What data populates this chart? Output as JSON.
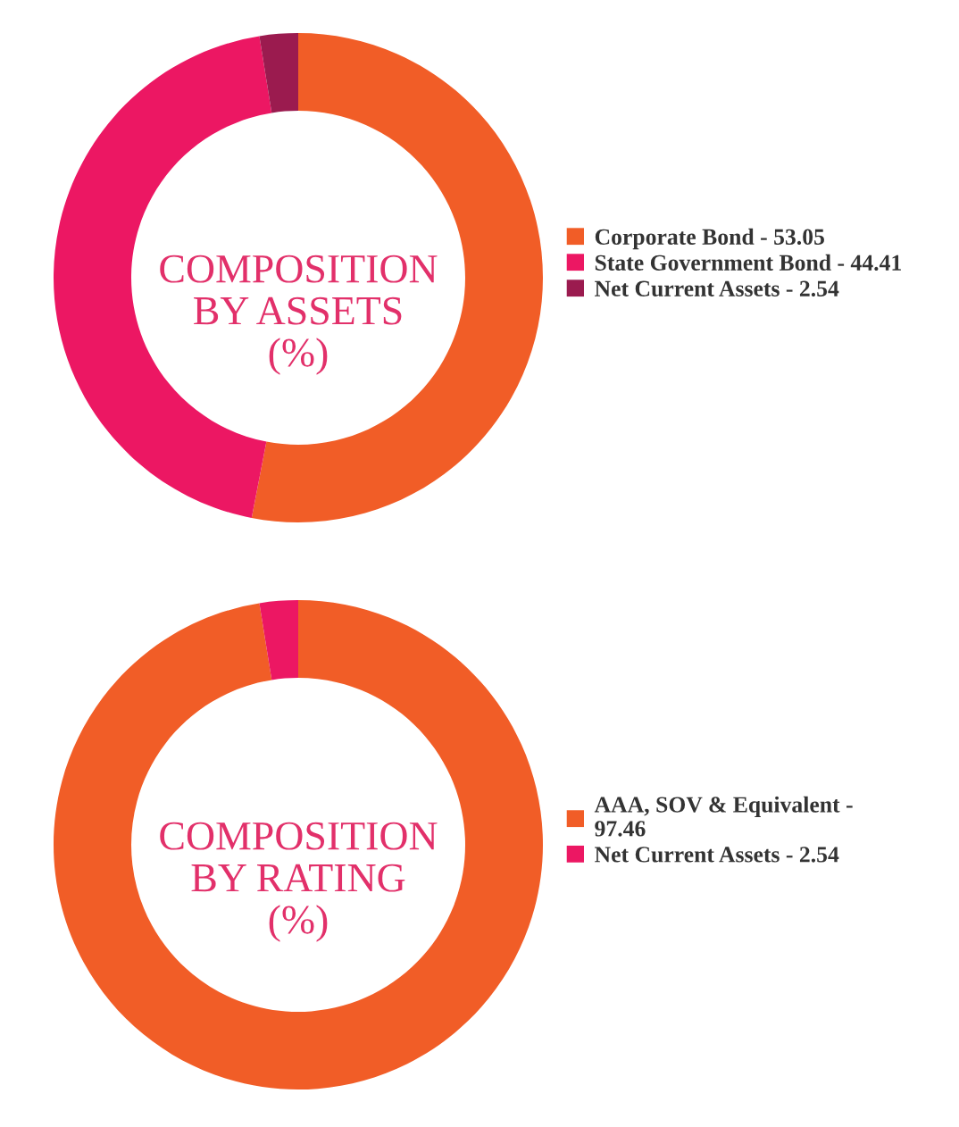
{
  "chart_data": [
    {
      "type": "donut",
      "title": "COMPOSITION\nBY ASSETS\n(%)",
      "categories": [
        "Corporate Bond - 53.05",
        "State Government Bond - 44.41",
        "Net Current Assets - 2.54"
      ],
      "values": [
        53.05,
        44.41,
        2.54
      ],
      "colors": [
        "#f15d27",
        "#ec1763",
        "#9b1b4f"
      ],
      "legend": "right"
    },
    {
      "type": "donut",
      "title": "COMPOSITION\nBY RATING\n(%)",
      "categories": [
        "AAA, SOV & Equivalent -\n97.46",
        "Net Current Assets - 2.54"
      ],
      "values": [
        97.46,
        2.54
      ],
      "colors": [
        "#f15d27",
        "#ec1763"
      ],
      "legend": "right"
    }
  ]
}
